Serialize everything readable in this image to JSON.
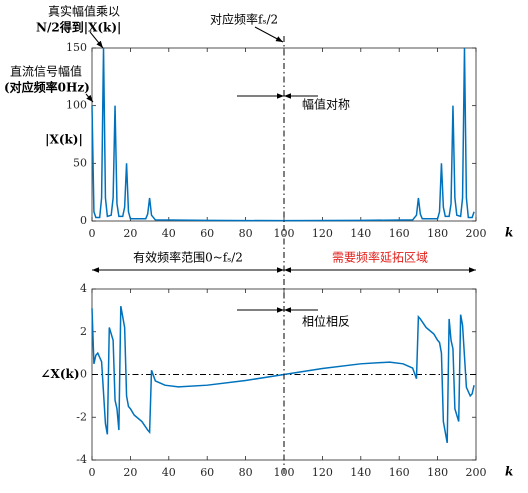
{
  "chart_data": [
    {
      "type": "line",
      "xlabel": "k",
      "ylabel": "|X(k)|",
      "color": "#0072bd",
      "xlim": [
        0,
        200
      ],
      "xticks": [
        0,
        20,
        40,
        60,
        80,
        100,
        120,
        140,
        160,
        180,
        200
      ],
      "ylim": [
        0,
        150
      ],
      "yticks": [
        0,
        50,
        100,
        150
      ],
      "series": [
        {
          "color": "#0072bd",
          "x": [
            0,
            1,
            2,
            4,
            5,
            6,
            7,
            8,
            10,
            11,
            12,
            13,
            14,
            16,
            17,
            18,
            19,
            20,
            28,
            29,
            30,
            31,
            33,
            60,
            100,
            140,
            167,
            169,
            170,
            171,
            172,
            180,
            181,
            182,
            183,
            184,
            186,
            187,
            188,
            189,
            190,
            192,
            193,
            194,
            195,
            196,
            198,
            199
          ],
          "values": [
            100,
            8,
            3,
            3,
            20,
            150,
            20,
            4,
            5,
            20,
            100,
            15,
            4,
            4,
            12,
            50,
            8,
            2,
            2,
            6,
            20,
            5,
            1,
            0.5,
            0.3,
            0.5,
            1,
            5,
            20,
            6,
            2,
            2,
            8,
            50,
            12,
            4,
            4,
            15,
            100,
            20,
            5,
            4,
            20,
            150,
            20,
            3,
            3,
            8
          ]
        }
      ],
      "annotations": [
        "真实幅值乘以",
        "N/2得到|X(k)|",
        "直流信号幅值",
        "(对应频率0Hz)",
        "对应频率fₛ/2",
        "幅值对称"
      ]
    },
    {
      "type": "line",
      "xlabel": "k",
      "ylabel": "∠X(k)",
      "color": "#0072bd",
      "xlim": [
        0,
        200
      ],
      "xticks": [
        0,
        20,
        40,
        60,
        80,
        100,
        120,
        140,
        160,
        180,
        200
      ],
      "ylim": [
        -4,
        4
      ],
      "yticks": [
        -4,
        -2,
        0,
        2,
        4
      ],
      "series": [
        {
          "color": "#0072bd",
          "x": [
            0,
            1,
            2,
            3,
            5,
            7,
            8,
            9,
            10,
            11,
            12,
            13,
            14,
            15,
            16,
            17,
            18,
            19,
            20,
            22,
            26,
            29,
            30,
            31,
            33,
            38,
            45,
            60,
            80,
            100,
            120,
            140,
            155,
            162,
            167,
            169,
            170,
            171,
            174,
            178,
            180,
            181,
            182,
            183,
            184,
            185,
            186,
            187,
            188,
            189,
            190,
            191,
            192,
            193,
            195,
            197,
            198,
            199
          ],
          "values": [
            3.1,
            0.5,
            0.9,
            1.0,
            0.6,
            -2.3,
            -2.8,
            2.2,
            1.9,
            1.6,
            -1.2,
            -1.6,
            -2.6,
            3.2,
            2.7,
            2.2,
            -1.0,
            -1.5,
            -1.6,
            -1.9,
            -2.2,
            -2.6,
            -2.7,
            0.2,
            -0.3,
            -0.5,
            -0.58,
            -0.5,
            -0.28,
            0,
            0.28,
            0.5,
            0.58,
            0.5,
            0.3,
            -0.2,
            2.7,
            2.6,
            2.2,
            1.9,
            1.6,
            1.5,
            1.0,
            -2.2,
            -2.7,
            -3.2,
            2.6,
            1.6,
            1.2,
            -1.6,
            -1.9,
            -2.2,
            2.8,
            2.3,
            -0.6,
            -1.0,
            -0.9,
            -0.5
          ]
        }
      ],
      "annotations": [
        "有效频率范围0~fₛ/2",
        "需要频率延拓区域",
        "相位相反"
      ]
    }
  ]
}
